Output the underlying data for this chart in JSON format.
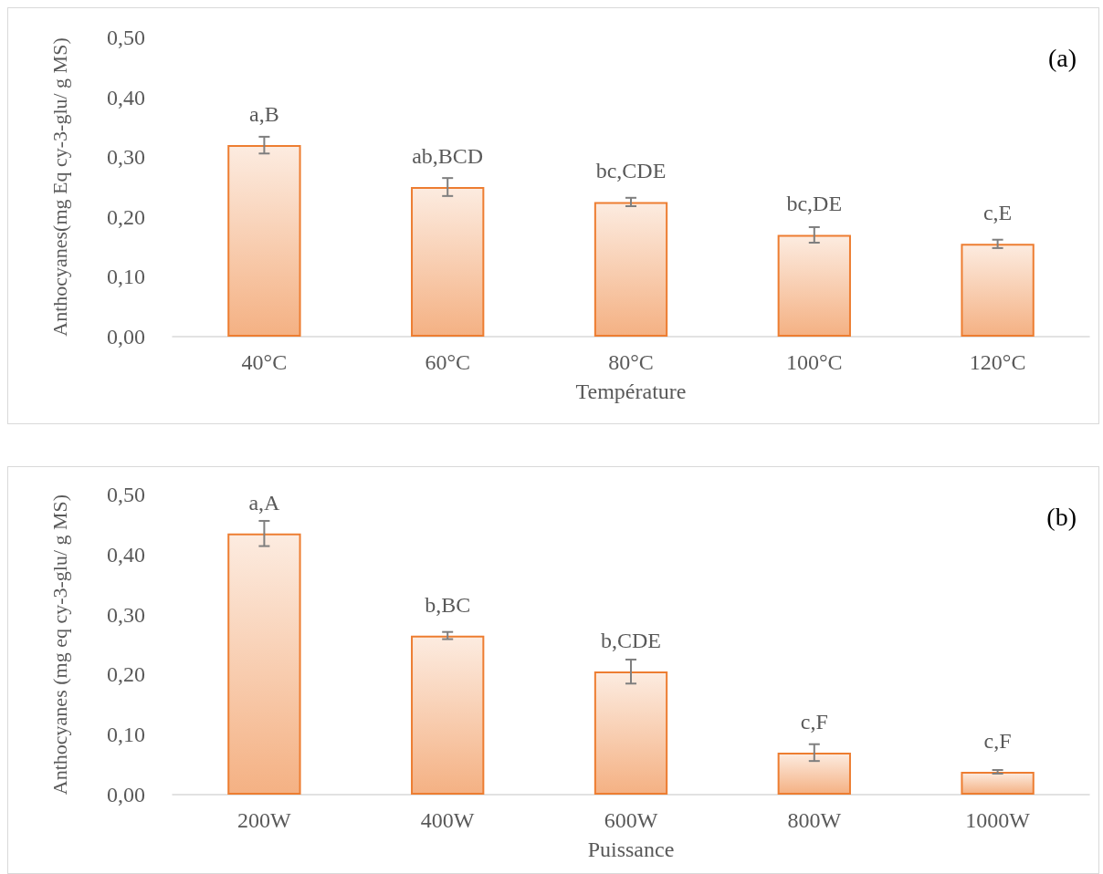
{
  "chart_data": [
    {
      "type": "bar",
      "categories": [
        "40°C",
        "60°C",
        "80°C",
        "100°C",
        "120°C"
      ],
      "xlabel": "Température",
      "ylabel": "Anthocyanes(mg Eq cy-3-glu/ g MS)",
      "values": [
        0.32,
        0.25,
        0.225,
        0.17,
        0.155
      ],
      "errors": [
        0.014,
        0.015,
        0.007,
        0.013,
        0.007
      ],
      "value_labels": [
        "a,B",
        "ab,BCD",
        "bc,CDE",
        "bc,DE",
        "c,E"
      ],
      "color": "#ed7d31",
      "ylim": [
        0,
        0.5
      ],
      "yticks": [
        {
          "value": 0,
          "label": "0,00"
        },
        {
          "value": 0.1,
          "label": "0,10"
        },
        {
          "value": 0.2,
          "label": "0,20"
        },
        {
          "value": 0.3,
          "label": "0,30"
        },
        {
          "value": 0.4,
          "label": "0,40"
        },
        {
          "value": 0.5,
          "label": "0,50"
        }
      ],
      "annotations": [
        "(a)"
      ],
      "grid": false
    },
    {
      "type": "bar",
      "categories": [
        "200W",
        "400W",
        "600W",
        "800W",
        "1000W"
      ],
      "xlabel": "Puissance",
      "ylabel": "Anthocyanes (mg eq cy-3-glu/ g MS)",
      "values": [
        0.435,
        0.265,
        0.205,
        0.07,
        0.038
      ],
      "errors": [
        0.021,
        0.006,
        0.02,
        0.014,
        0.003
      ],
      "value_labels": [
        "a,A",
        "b,BC",
        "b,CDE",
        "c,F",
        "c,F"
      ],
      "color": "#ed7d31",
      "ylim": [
        0,
        0.5
      ],
      "yticks": [
        {
          "value": 0,
          "label": "0,00"
        },
        {
          "value": 0.1,
          "label": "0,10"
        },
        {
          "value": 0.2,
          "label": "0,20"
        },
        {
          "value": 0.3,
          "label": "0,30"
        },
        {
          "value": 0.4,
          "label": "0,40"
        },
        {
          "value": 0.5,
          "label": "0,50"
        }
      ],
      "annotations": [
        "(b)"
      ],
      "grid": false
    }
  ]
}
